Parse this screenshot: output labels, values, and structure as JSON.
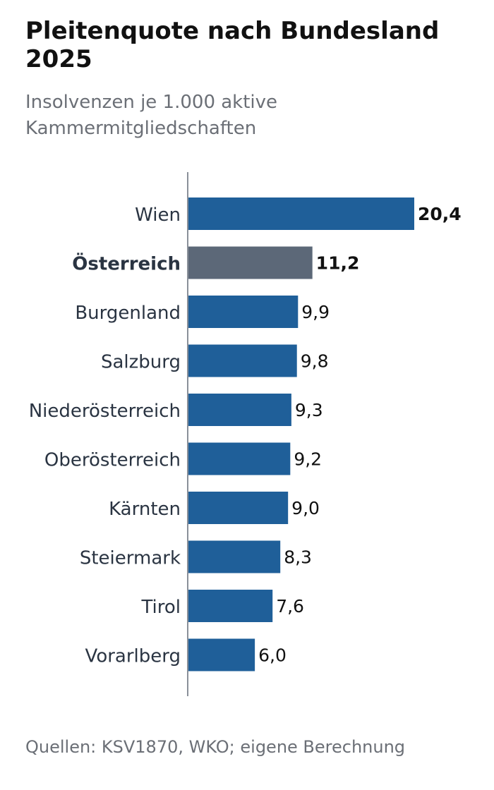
{
  "title": "Pleitenquote nach Bundesland 2025",
  "subtitle": "Insolvenzen je 1.000 aktive Kammermitgliedschaften",
  "source": "Quellen: KSV1870, WKO; eigene Berechnung",
  "colors": {
    "bar": "#1f5f99",
    "highlight_bar": "#5c6878",
    "axis": "#8a9099",
    "label": "#2a3442",
    "value": "#111111"
  },
  "chart_data": {
    "type": "bar",
    "orientation": "horizontal",
    "title": "Pleitenquote nach Bundesland 2025",
    "subtitle": "Insolvenzen je 1.000 aktive Kammermitgliedschaften",
    "categories": [
      "Wien",
      "Österreich",
      "Burgenland",
      "Salzburg",
      "Niederösterreich",
      "Oberösterreich",
      "Kärnten",
      "Steiermark",
      "Tirol",
      "Vorarlberg"
    ],
    "values": [
      20.4,
      11.2,
      9.9,
      9.8,
      9.3,
      9.2,
      9.0,
      8.3,
      7.6,
      6.0
    ],
    "value_labels": [
      "20,4",
      "11,2",
      "9,9",
      "9,8",
      "9,3",
      "9,2",
      "9,0",
      "8,3",
      "7,6",
      "6,0"
    ],
    "highlight": "Österreich",
    "bold_value_labels": [
      "20,4",
      "11,2"
    ],
    "xlim": [
      0,
      20.4
    ],
    "grid": false,
    "legend": "none"
  }
}
